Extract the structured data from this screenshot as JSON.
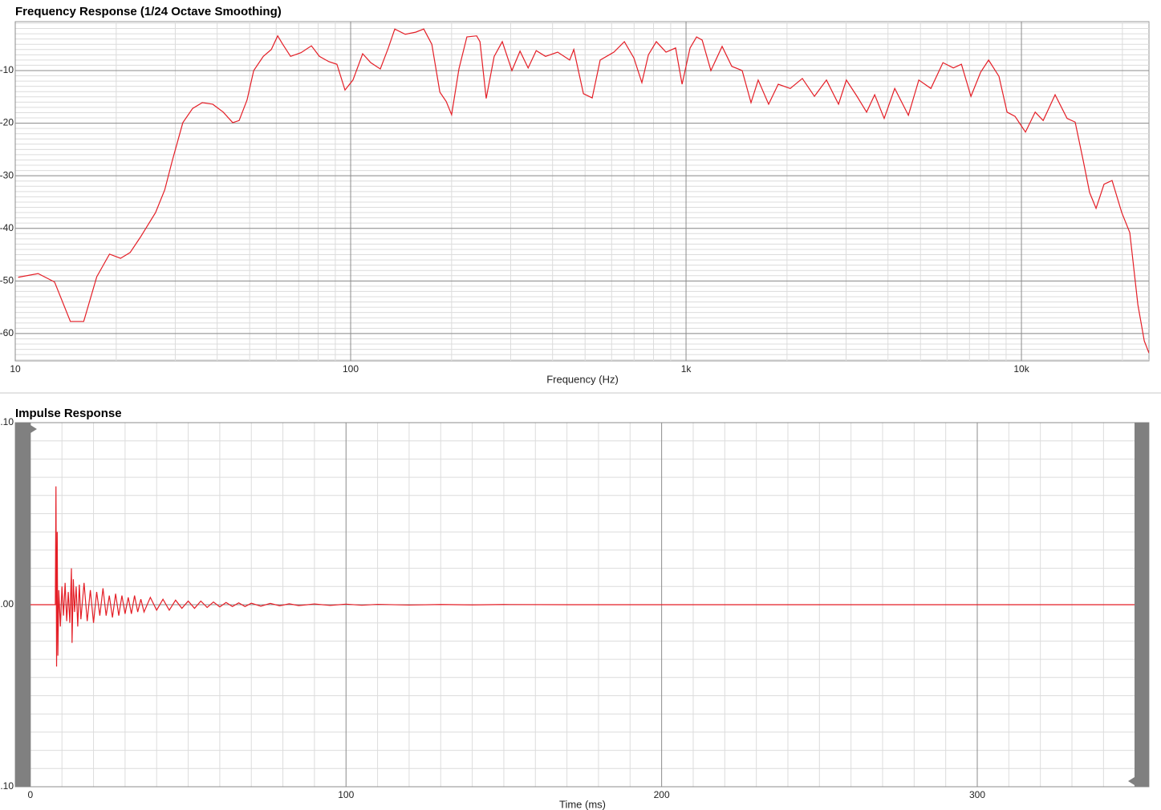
{
  "chart_data": [
    {
      "type": "line",
      "title": "Frequency Response (1/24 Octave Smoothing)",
      "xlabel": "Frequency (Hz)",
      "xscale": "log",
      "grid": true,
      "color": "#e41e26",
      "xlim": [
        10,
        24000
      ],
      "ylim": [
        -65.2,
        -0.7
      ],
      "xticks": [
        10,
        100,
        {
          "value": 1000,
          "label": "1k"
        },
        {
          "value": 10000,
          "label": "10k"
        }
      ],
      "yticks": [
        -10,
        -20,
        -30,
        -40,
        -50,
        -60
      ],
      "xminorticks": [
        20,
        30,
        40,
        50,
        60,
        70,
        80,
        90,
        200,
        300,
        400,
        500,
        600,
        700,
        800,
        900,
        2000,
        3000,
        4000,
        5000,
        6000,
        7000,
        8000,
        9000,
        20000
      ],
      "yminorticks": [
        -65,
        -64,
        -63,
        -62,
        -61,
        -60,
        -59,
        -58,
        -57,
        -56,
        -55,
        -54,
        -53,
        -52,
        -51,
        -50,
        -49,
        -48,
        -47,
        -46,
        -45,
        -44,
        -43,
        -42,
        -41,
        -40,
        -39,
        -38,
        -37,
        -36,
        -35,
        -34,
        -33,
        -32,
        -31,
        -30,
        -29,
        -28,
        -27,
        -26,
        -25,
        -24,
        -23,
        -22,
        -21,
        -20,
        -19,
        -18,
        -17,
        -16,
        -15,
        -14,
        -13,
        -12,
        -11,
        -10,
        -9,
        -8,
        -7,
        -6,
        -5,
        -4,
        -3,
        -2,
        -1
      ],
      "x": [
        10.2,
        11.7,
        13.1,
        14.6,
        16,
        17.5,
        19.1,
        20.6,
        22,
        23.6,
        26.2,
        27.9,
        29.4,
        31.6,
        33.8,
        36.1,
        38.8,
        41.7,
        44.5,
        46.5,
        49.1,
        51.4,
        54.9,
        58,
        60.6,
        62.6,
        66.2,
        71.1,
        76.4,
        80.7,
        86.1,
        91,
        96.2,
        101.6,
        108.6,
        114.8,
        122.6,
        129.5,
        135.4,
        145.5,
        156.3,
        165.2,
        174.6,
        184.5,
        192.8,
        200,
        210.3,
        222.1,
        237.5,
        243,
        253.6,
        267.9,
        283.2,
        302.6,
        319.9,
        338.2,
        357.5,
        381.1,
        414.2,
        449.9,
        462.7,
        494.4,
        525,
        554.6,
        609.3,
        654.8,
        698.9,
        738.4,
        772.3,
        815.4,
        871.5,
        930.9,
        973.2,
        1028,
        1075,
        1117,
        1186,
        1281,
        1369,
        1470,
        1562,
        1641,
        1763,
        1883,
        2045,
        2222,
        2414,
        2622,
        2849,
        3006,
        3234,
        3454,
        3651,
        3897,
        4190,
        4602,
        4943,
        5370,
        5834,
        6266,
        6623,
        7070,
        7560,
        7982,
        8570,
        9060,
        9570,
        10280,
        10990,
        11610,
        12600,
        13680,
        14460,
        15280,
        15970,
        16690,
        17630,
        18630,
        19910,
        21040,
        22240,
        23240,
        24000
      ],
      "values": [
        -49.3,
        -48.6,
        -50.2,
        -57.7,
        -57.7,
        -49.2,
        -44.9,
        -45.7,
        -44.6,
        -41.7,
        -37,
        -32.7,
        -27.1,
        -19.9,
        -17.2,
        -16.1,
        -16.4,
        -17.9,
        -19.9,
        -19.5,
        -15.6,
        -10,
        -7.3,
        -6,
        -3.4,
        -4.9,
        -7.3,
        -6.6,
        -5.3,
        -7.3,
        -8.3,
        -8.8,
        -13.7,
        -11.8,
        -6.8,
        -8.5,
        -9.7,
        -5.7,
        -2.1,
        -3.1,
        -2.7,
        -2.1,
        -5,
        -14.1,
        -15.9,
        -18.4,
        -9.7,
        -3.6,
        -3.4,
        -4.5,
        -15.3,
        -7.3,
        -4.5,
        -10,
        -6.3,
        -9.5,
        -6.2,
        -7.3,
        -6.5,
        -8,
        -6,
        -14.4,
        -15.2,
        -8,
        -6.5,
        -4.5,
        -7.6,
        -12.3,
        -7,
        -4.5,
        -6.5,
        -5.7,
        -12.6,
        -5.7,
        -3.6,
        -4.2,
        -10,
        -5.4,
        -9.2,
        -10,
        -16.1,
        -11.8,
        -16.4,
        -12.6,
        -13.4,
        -11.5,
        -14.9,
        -11.8,
        -16.4,
        -11.8,
        -14.9,
        -17.9,
        -14.6,
        -19.1,
        -13.4,
        -18.5,
        -11.8,
        -13.4,
        -8.5,
        -9.5,
        -8.8,
        -14.9,
        -10.3,
        -8,
        -11.1,
        -17.9,
        -18.7,
        -21.7,
        -17.9,
        -19.5,
        -14.6,
        -19.1,
        -19.8,
        -27.1,
        -33.2,
        -36.2,
        -31.6,
        -30.9,
        -37,
        -40.8,
        -54.5,
        -61.4,
        -63.7
      ]
    },
    {
      "type": "line",
      "title": "Impulse Response",
      "xlabel": "Time (ms)",
      "grid": true,
      "color": "#e41e26",
      "xlim": [
        -4.8,
        354.4
      ],
      "ylim": [
        -0.1,
        0.1
      ],
      "xticks": [
        0,
        100,
        200,
        300
      ],
      "yticks": [
        {
          "value": 0.1,
          "label": ".10"
        },
        {
          "value": 0,
          "label": ".00"
        },
        {
          "value": -0.1,
          "label": ".10"
        }
      ],
      "xminorticks": [
        10,
        20,
        30,
        40,
        50,
        60,
        70,
        80,
        90,
        110,
        120,
        130,
        140,
        150,
        160,
        170,
        180,
        190,
        210,
        220,
        230,
        240,
        250,
        260,
        270,
        280,
        290,
        310,
        320,
        330,
        340,
        350
      ],
      "yminorticks": [
        -0.09,
        -0.08,
        -0.07,
        -0.06,
        -0.05,
        -0.04,
        -0.03,
        -0.02,
        -0.01,
        0.01,
        0.02,
        0.03,
        0.04,
        0.05,
        0.06,
        0.07,
        0.08,
        0.09
      ],
      "x": [
        0,
        7.9,
        8.1,
        8.3,
        8.5,
        8.7,
        9,
        9.5,
        10,
        10.5,
        11,
        11.5,
        12,
        12.5,
        13,
        13.2,
        13.6,
        14,
        14.5,
        15,
        15.5,
        16,
        17,
        18,
        19,
        20,
        21,
        22,
        23,
        24,
        25,
        26,
        27,
        28,
        29,
        30,
        31,
        32,
        33,
        34,
        35,
        36,
        38,
        40,
        42,
        44,
        46,
        48,
        50,
        52,
        54,
        56,
        58,
        60,
        62,
        64,
        66,
        68,
        70,
        73,
        76,
        79,
        82,
        85,
        90,
        95,
        100,
        105,
        110,
        120,
        130,
        140,
        150,
        170,
        190,
        354
      ],
      "values": [
        0,
        0,
        0.065,
        -0.034,
        0.04,
        -0.028,
        0.008,
        -0.012,
        0.01,
        -0.006,
        0.012,
        -0.009,
        0.007,
        -0.01,
        0.02,
        -0.021,
        0.014,
        -0.004,
        0.01,
        -0.012,
        0.011,
        -0.008,
        0.012,
        -0.009,
        0.008,
        -0.01,
        0.007,
        -0.006,
        0.009,
        -0.006,
        0.005,
        -0.007,
        0.006,
        -0.006,
        0.005,
        -0.005,
        0.004,
        -0.005,
        0.005,
        -0.004,
        0.003,
        -0.004,
        0.004,
        -0.003,
        0.003,
        -0.003,
        0.0025,
        -0.002,
        0.002,
        -0.002,
        0.002,
        -0.0015,
        0.0015,
        -0.0012,
        0.0012,
        -0.001,
        0.001,
        -0.001,
        0.0008,
        -0.0008,
        0.0007,
        -0.0006,
        0.0005,
        -0.0005,
        0.0004,
        -0.0004,
        0.0003,
        -0.0003,
        0.0002,
        -0.0002,
        0.0001,
        -0.0001,
        0.0001,
        0,
        0,
        0
      ]
    }
  ]
}
